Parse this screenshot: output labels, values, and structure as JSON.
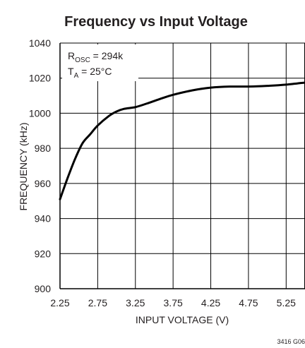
{
  "chart_data": {
    "type": "line",
    "title": "Frequency vs Input Voltage",
    "xlabel": "INPUT VOLTAGE (V)",
    "ylabel": "FREQUENCY (kHz)",
    "xlim": [
      2.25,
      5.5
    ],
    "ylim": [
      900,
      1040
    ],
    "x_ticks": [
      "2.25",
      "2.75",
      "3.25",
      "3.75",
      "4.25",
      "4.75",
      "5.25"
    ],
    "y_ticks": [
      "900",
      "920",
      "940",
      "960",
      "980",
      "1000",
      "1020",
      "1040"
    ],
    "grid": true,
    "annotations": [
      {
        "base": "R",
        "sub": "OSC",
        "rest": " = 294k"
      },
      {
        "base": "T",
        "sub": "A",
        "rest": " = 25°C"
      }
    ],
    "figure_code": "3416 G06",
    "series": [
      {
        "color": "#000000",
        "x": [
          2.25,
          2.35,
          2.45,
          2.55,
          2.65,
          2.75,
          2.9,
          3.0,
          3.1,
          3.25,
          3.4,
          3.6,
          3.75,
          4.0,
          4.25,
          4.5,
          4.75,
          5.0,
          5.25,
          5.5
        ],
        "y": [
          951,
          963,
          974,
          983,
          988,
          993,
          998.5,
          1001,
          1002.5,
          1003.5,
          1005.5,
          1008.5,
          1010.5,
          1013,
          1014.6,
          1015.2,
          1015.2,
          1015.6,
          1016.3,
          1017.5
        ]
      }
    ]
  }
}
